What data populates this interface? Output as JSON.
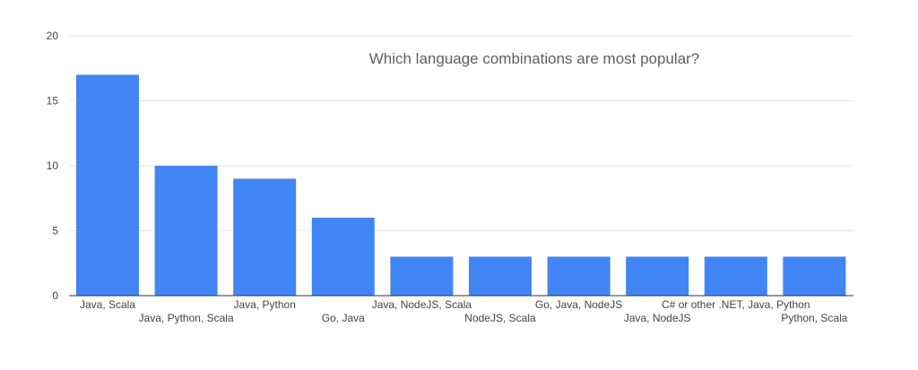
{
  "chart_data": {
    "type": "bar",
    "title": "Which language combinations are most popular?",
    "xlabel": "",
    "ylabel": "",
    "ylim": [
      0,
      20
    ],
    "yticks": [
      0,
      5,
      10,
      15,
      20
    ],
    "grid": true,
    "bar_color": "#4285f4",
    "categories": [
      "Java, Scala",
      "Java, Python, Scala",
      "Java, Python",
      "Go, Java",
      "Java, NodeJS, Scala",
      "NodeJS, Scala",
      "Go, Java, NodeJS",
      "Java, NodeJS",
      "C# or other .NET, Java, Python",
      "Python, Scala"
    ],
    "values": [
      17,
      10,
      9,
      6,
      3,
      3,
      3,
      3,
      3,
      3
    ]
  }
}
